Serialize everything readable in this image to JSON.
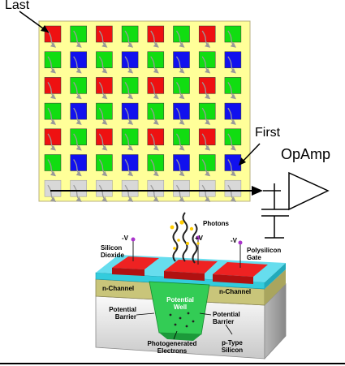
{
  "labels": {
    "last": "Last",
    "first": "First",
    "opamp": "OpAmp"
  },
  "ccd": {
    "rows": 6,
    "cols": 8,
    "bayer_colors": [
      "red",
      "green",
      "blue"
    ],
    "pixel_colors": {
      "red": "#ee1111",
      "green": "#11dd11",
      "blue": "#1111ee",
      "register": "#d8d8d8",
      "background": "#ffff99",
      "arrow": "#9a9a9a"
    },
    "readout_row_cells": 8
  },
  "cross_section": {
    "photons": "Photons",
    "plus_v": "+V",
    "minus_v_left": "-V",
    "minus_v_right": "-V",
    "silicon_dioxide": [
      "Silicon",
      "Dioxide"
    ],
    "polysilicon_gate": [
      "Polysilicon",
      "Gate"
    ],
    "n_channel_left": "n-Channel",
    "n_channel_right": "n-Channel",
    "potential_well": [
      "Potential",
      "Well"
    ],
    "potential_barrier_left": [
      "Potential",
      "Barrier"
    ],
    "potential_barrier_right": [
      "Potential",
      "Barrier"
    ],
    "photogenerated": [
      "Photogenerated",
      "Electrons"
    ],
    "p_type": [
      "p-Type",
      "Silicon"
    ]
  }
}
